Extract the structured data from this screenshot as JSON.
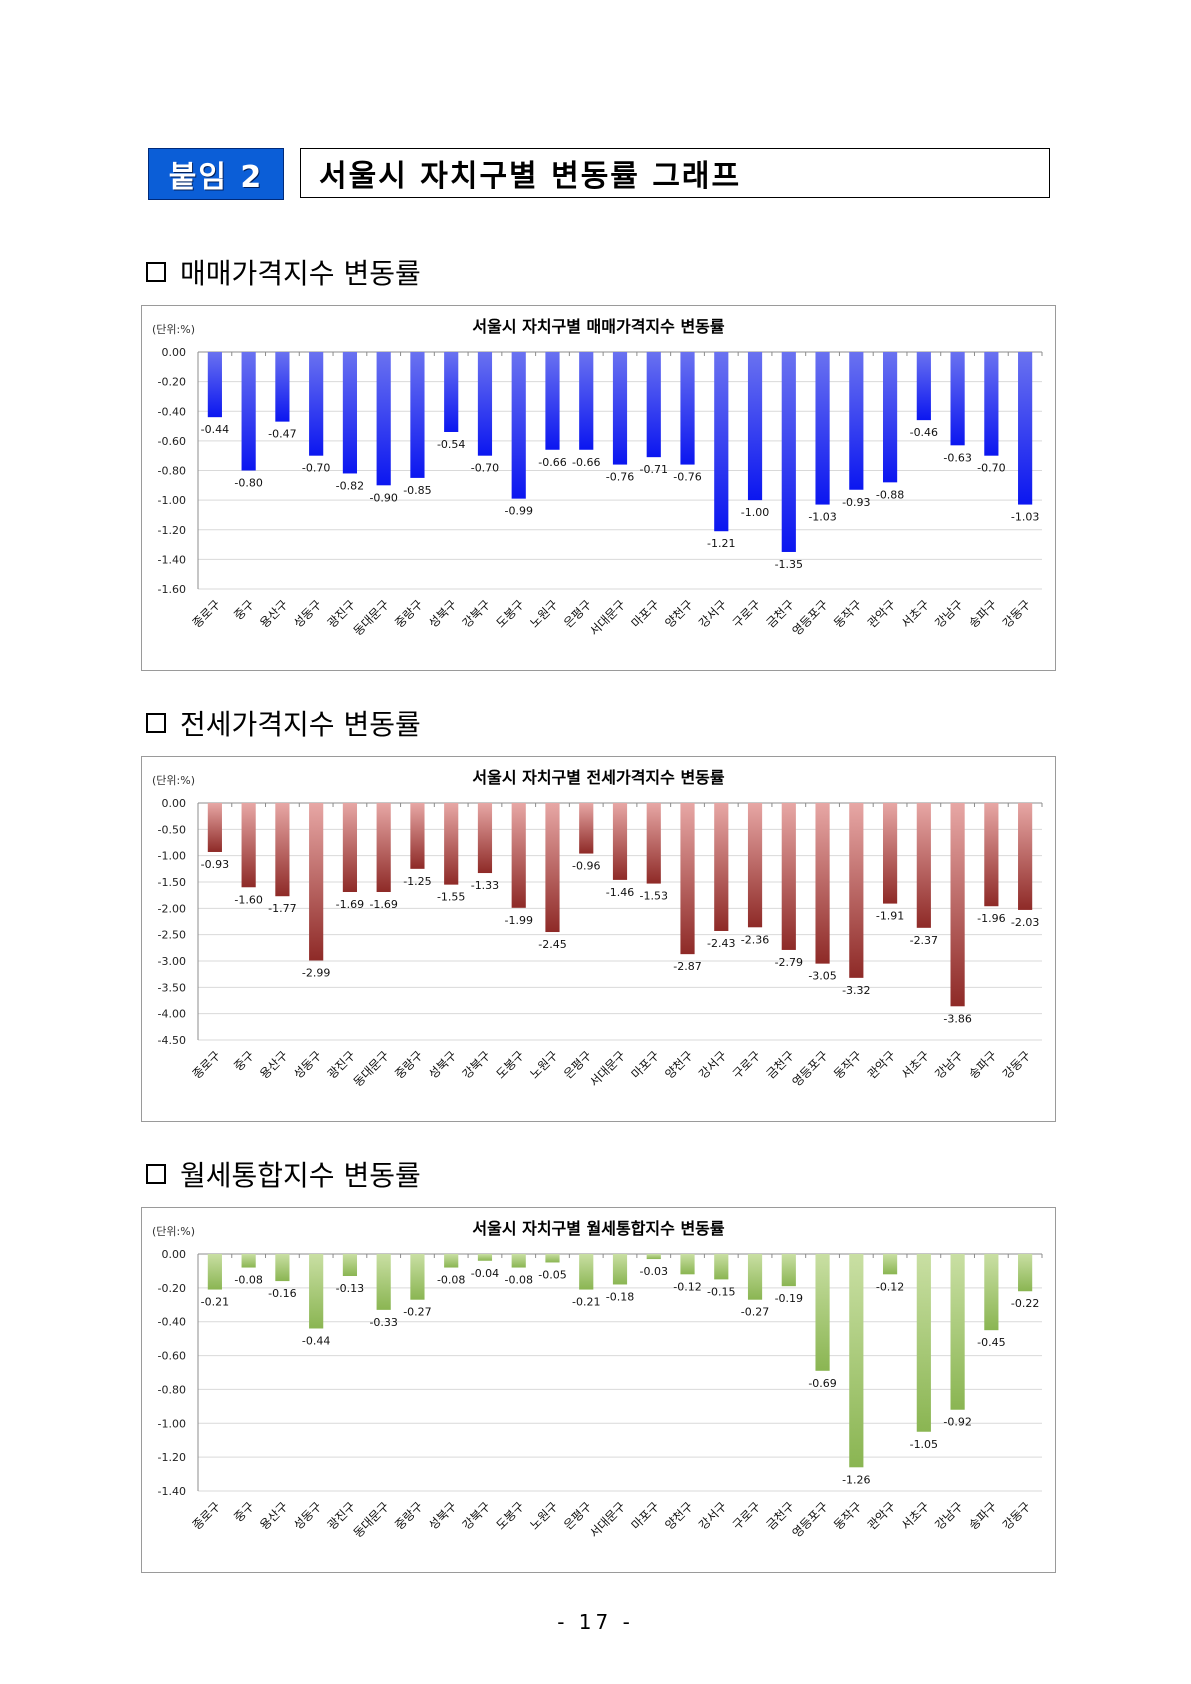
{
  "header": {
    "badge": "붙임 2",
    "title": "서울시 자치구별 변동률 그래프"
  },
  "sections": [
    {
      "heading": "매매가격지수 변동률"
    },
    {
      "heading": "전세가격지수 변동률"
    },
    {
      "heading": "월세통합지수 변동률"
    }
  ],
  "page_number": "- 17 -",
  "chart_data": [
    {
      "type": "bar",
      "title": "서울시 자치구별 매매가격지수 변동률",
      "unit_label": "(단위:%)",
      "ylim": [
        -1.6,
        0
      ],
      "ytick_step": 0.2,
      "categories": [
        "종로구",
        "중구",
        "용산구",
        "성동구",
        "광진구",
        "동대문구",
        "중랑구",
        "성북구",
        "강북구",
        "도봉구",
        "노원구",
        "은평구",
        "서대문구",
        "마포구",
        "양천구",
        "강서구",
        "구로구",
        "금천구",
        "영등포구",
        "동작구",
        "관악구",
        "서초구",
        "강남구",
        "송파구",
        "강동구"
      ],
      "values": [
        -0.44,
        -0.8,
        -0.47,
        -0.7,
        -0.82,
        -0.9,
        -0.85,
        -0.54,
        -0.7,
        -0.99,
        -0.66,
        -0.66,
        -0.76,
        -0.71,
        -0.76,
        -1.21,
        -1.0,
        -1.35,
        -1.03,
        -0.93,
        -0.88,
        -0.46,
        -0.63,
        -0.7,
        -1.03
      ],
      "colors": {
        "top": "#6a72f0",
        "bottom": "#0b16f0"
      }
    },
    {
      "type": "bar",
      "title": "서울시 자치구별 전세가격지수 변동률",
      "unit_label": "(단위:%)",
      "ylim": [
        -4.5,
        0
      ],
      "ytick_step": 0.5,
      "categories": [
        "종로구",
        "중구",
        "용산구",
        "성동구",
        "광진구",
        "동대문구",
        "중랑구",
        "성북구",
        "강북구",
        "도봉구",
        "노원구",
        "은평구",
        "서대문구",
        "마포구",
        "양천구",
        "강서구",
        "구로구",
        "금천구",
        "영등포구",
        "동작구",
        "관악구",
        "서초구",
        "강남구",
        "송파구",
        "강동구"
      ],
      "values": [
        -0.93,
        -1.6,
        -1.77,
        -2.99,
        -1.69,
        -1.69,
        -1.25,
        -1.55,
        -1.33,
        -1.99,
        -2.45,
        -0.96,
        -1.46,
        -1.53,
        -2.87,
        -2.43,
        -2.36,
        -2.79,
        -3.05,
        -3.32,
        -1.91,
        -2.37,
        -3.86,
        -1.96,
        -2.03
      ],
      "colors": {
        "top": "#e7a7a5",
        "bottom": "#8e2a27"
      }
    },
    {
      "type": "bar",
      "title": "서울시 자치구별 월세통합지수 변동률",
      "unit_label": "(단위:%)",
      "ylim": [
        -1.4,
        0
      ],
      "ytick_step": 0.2,
      "categories": [
        "종로구",
        "중구",
        "용산구",
        "성동구",
        "광진구",
        "동대문구",
        "중랑구",
        "성북구",
        "강북구",
        "도봉구",
        "노원구",
        "은평구",
        "서대문구",
        "마포구",
        "양천구",
        "강서구",
        "구로구",
        "금천구",
        "영등포구",
        "동작구",
        "관악구",
        "서초구",
        "강남구",
        "송파구",
        "강동구"
      ],
      "values": [
        -0.21,
        -0.08,
        -0.16,
        -0.44,
        -0.13,
        -0.33,
        -0.27,
        -0.08,
        -0.04,
        -0.08,
        -0.05,
        -0.21,
        -0.18,
        -0.03,
        -0.12,
        -0.15,
        -0.27,
        -0.19,
        -0.69,
        -1.26,
        -0.12,
        -1.05,
        -0.92,
        -0.45,
        -0.22
      ],
      "colors": {
        "top": "#c9dfa3",
        "bottom": "#8ab552"
      }
    }
  ]
}
